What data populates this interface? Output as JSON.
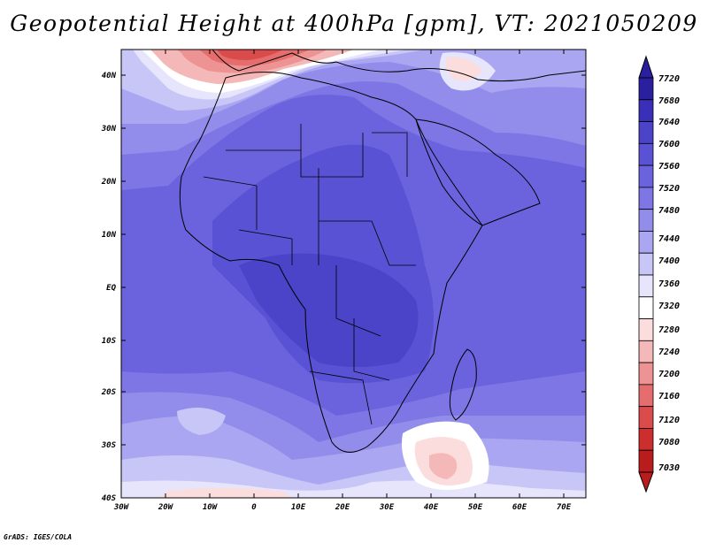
{
  "title": "Geopotential Height at 400hPa [gpm], VT: 2021050209",
  "footer": "GrADS: IGES/COLA",
  "map": {
    "lat_labels": [
      "40N",
      "30N",
      "20N",
      "10N",
      "EQ",
      "10S",
      "20S",
      "30S",
      "40S"
    ],
    "lon_labels": [
      "30W",
      "20W",
      "10W",
      "0",
      "10E",
      "20E",
      "30E",
      "40E",
      "50E",
      "60E",
      "70E"
    ],
    "base_color": "#6b63dd"
  },
  "colorbar": {
    "labels": [
      "7720",
      "7680",
      "7640",
      "7600",
      "7560",
      "7520",
      "7480",
      "7440",
      "7400",
      "7360",
      "7320",
      "7280",
      "7240",
      "7200",
      "7160",
      "7120",
      "7080",
      "7030"
    ],
    "colors": [
      "#2a1f9e",
      "#3a2fb8",
      "#4b43c8",
      "#5a52d4",
      "#6b63dd",
      "#7d76e4",
      "#928ceb",
      "#aaa6f1",
      "#c8c6f7",
      "#e6e5fc",
      "#ffffff",
      "#fbdddd",
      "#f5b8b8",
      "#ee9393",
      "#e56d6d",
      "#da4b4b",
      "#cc2e2e",
      "#b81c1c"
    ]
  }
}
